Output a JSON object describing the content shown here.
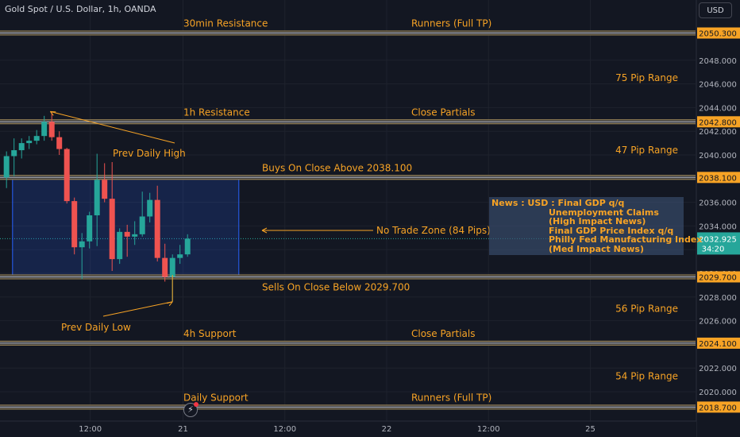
{
  "header": {
    "title": "Gold Spot / U.S. Dollar, 1h, OANDA",
    "currency_button": "USD"
  },
  "colors": {
    "background": "#131722",
    "up": "#26a69a",
    "down": "#ef5350",
    "annotation": "#f7a325",
    "level_line": "#b2b5be"
  },
  "news": {
    "lines": [
      "News : USD : Final GDP q/q",
      "Unemployment Claims",
      "(High Impact News)",
      "Final GDP Price Index q/q",
      "Philly Fed Manufacturing Index",
      "(Med Impact News)"
    ]
  },
  "replay_icon": "lightning-replay-icon",
  "chart_data": {
    "type": "candlestick",
    "title": "Gold Spot / U.S. Dollar, 1h, OANDA",
    "ylim": [
      2018.0,
      2051.5
    ],
    "y_ticks": [
      2020,
      2022,
      2024,
      2026,
      2028,
      2030,
      2032,
      2034,
      2036,
      2038,
      2040,
      2042,
      2044,
      2046,
      2048
    ],
    "x_ticks": [
      {
        "label": "12:00",
        "bar": 11.1
      },
      {
        "label": "21",
        "bar": 23.4
      },
      {
        "label": "12:00",
        "bar": 36.9
      },
      {
        "label": "22",
        "bar": 50.4
      },
      {
        "label": "12:00",
        "bar": 63.9
      },
      {
        "label": "25",
        "bar": 77.4
      }
    ],
    "current_price": 2032.925,
    "countdown": "34:20",
    "candles": [
      {
        "o": 2038.1,
        "h": 2040.3,
        "l": 2037.2,
        "c": 2039.9
      },
      {
        "o": 2039.9,
        "h": 2041.4,
        "l": 2038.2,
        "c": 2040.4
      },
      {
        "o": 2040.4,
        "h": 2041.4,
        "l": 2039.7,
        "c": 2041.0
      },
      {
        "o": 2041.0,
        "h": 2041.6,
        "l": 2040.5,
        "c": 2041.2
      },
      {
        "o": 2041.2,
        "h": 2042.1,
        "l": 2040.9,
        "c": 2041.6
      },
      {
        "o": 2041.6,
        "h": 2043.3,
        "l": 2041.2,
        "c": 2042.8
      },
      {
        "o": 2042.8,
        "h": 2043.6,
        "l": 2041.2,
        "c": 2041.5
      },
      {
        "o": 2041.5,
        "h": 2042.0,
        "l": 2040.0,
        "c": 2040.5
      },
      {
        "o": 2040.5,
        "h": 2040.6,
        "l": 2035.9,
        "c": 2036.1
      },
      {
        "o": 2036.1,
        "h": 2036.4,
        "l": 2031.6,
        "c": 2032.2
      },
      {
        "o": 2032.2,
        "h": 2033.4,
        "l": 2029.5,
        "c": 2032.7
      },
      {
        "o": 2032.7,
        "h": 2035.2,
        "l": 2032.1,
        "c": 2034.9
      },
      {
        "o": 2034.9,
        "h": 2040.1,
        "l": 2032.3,
        "c": 2037.9
      },
      {
        "o": 2037.9,
        "h": 2039.3,
        "l": 2036.0,
        "c": 2036.3
      },
      {
        "o": 2036.3,
        "h": 2039.4,
        "l": 2030.2,
        "c": 2031.2
      },
      {
        "o": 2031.2,
        "h": 2033.8,
        "l": 2030.8,
        "c": 2033.5
      },
      {
        "o": 2033.5,
        "h": 2034.1,
        "l": 2031.4,
        "c": 2033.1
      },
      {
        "o": 2033.1,
        "h": 2034.4,
        "l": 2032.4,
        "c": 2033.3
      },
      {
        "o": 2033.3,
        "h": 2036.9,
        "l": 2033.1,
        "c": 2034.8
      },
      {
        "o": 2034.8,
        "h": 2036.8,
        "l": 2034.3,
        "c": 2036.2
      },
      {
        "o": 2036.2,
        "h": 2037.4,
        "l": 2031.0,
        "c": 2031.3
      },
      {
        "o": 2031.3,
        "h": 2032.5,
        "l": 2029.3,
        "c": 2029.7
      },
      {
        "o": 2029.7,
        "h": 2031.6,
        "l": 2027.6,
        "c": 2031.3
      },
      {
        "o": 2031.3,
        "h": 2032.4,
        "l": 2030.8,
        "c": 2031.6
      },
      {
        "o": 2031.6,
        "h": 2033.3,
        "l": 2031.4,
        "c": 2032.925
      }
    ],
    "levels": [
      {
        "price": 2050.3,
        "label": "2050.300",
        "texts": [
          {
            "text": "30min Resistance",
            "px": 231
          },
          {
            "text": "Runners (Full TP)",
            "px": 518
          }
        ]
      },
      {
        "price": 2042.8,
        "label": "2042.800",
        "texts": [
          {
            "text": "1h Resistance",
            "px": 231
          },
          {
            "text": "Close Partials",
            "px": 518
          }
        ]
      },
      {
        "price": 2038.1,
        "label": "2038.100",
        "texts": [
          {
            "text": "Buys On Close Above 2038.100",
            "px": 330
          }
        ]
      },
      {
        "price": 2029.7,
        "label": "2029.700",
        "texts": [
          {
            "text": "Sells On Close Below 2029.700",
            "px": 330,
            "below": true
          }
        ]
      },
      {
        "price": 2024.1,
        "label": "2024.100",
        "texts": [
          {
            "text": "4h Support",
            "px": 231
          },
          {
            "text": "Close Partials",
            "px": 518
          }
        ]
      },
      {
        "price": 2018.7,
        "label": "2018.700",
        "texts": [
          {
            "text": "Daily Support",
            "px": 231
          },
          {
            "text": "Runners (Full TP)",
            "px": 518
          }
        ]
      }
    ],
    "range_labels": [
      {
        "text": "75 Pip Range",
        "price": 2046.5
      },
      {
        "text": "47 Pip Range",
        "price": 2040.4
      },
      {
        "text": "56 Pip Range",
        "price": 2027.0
      },
      {
        "text": "54 Pip Range",
        "price": 2021.3
      }
    ],
    "no_trade_zone": {
      "label": "No Trade Zone (84 Pips)",
      "top": 2038.1,
      "bottom": 2029.7
    },
    "prev_daily_high": {
      "label": "Prev Daily High",
      "price": 2043.6
    },
    "prev_daily_low": {
      "label": "Prev Daily Low",
      "price": 2027.6
    }
  }
}
